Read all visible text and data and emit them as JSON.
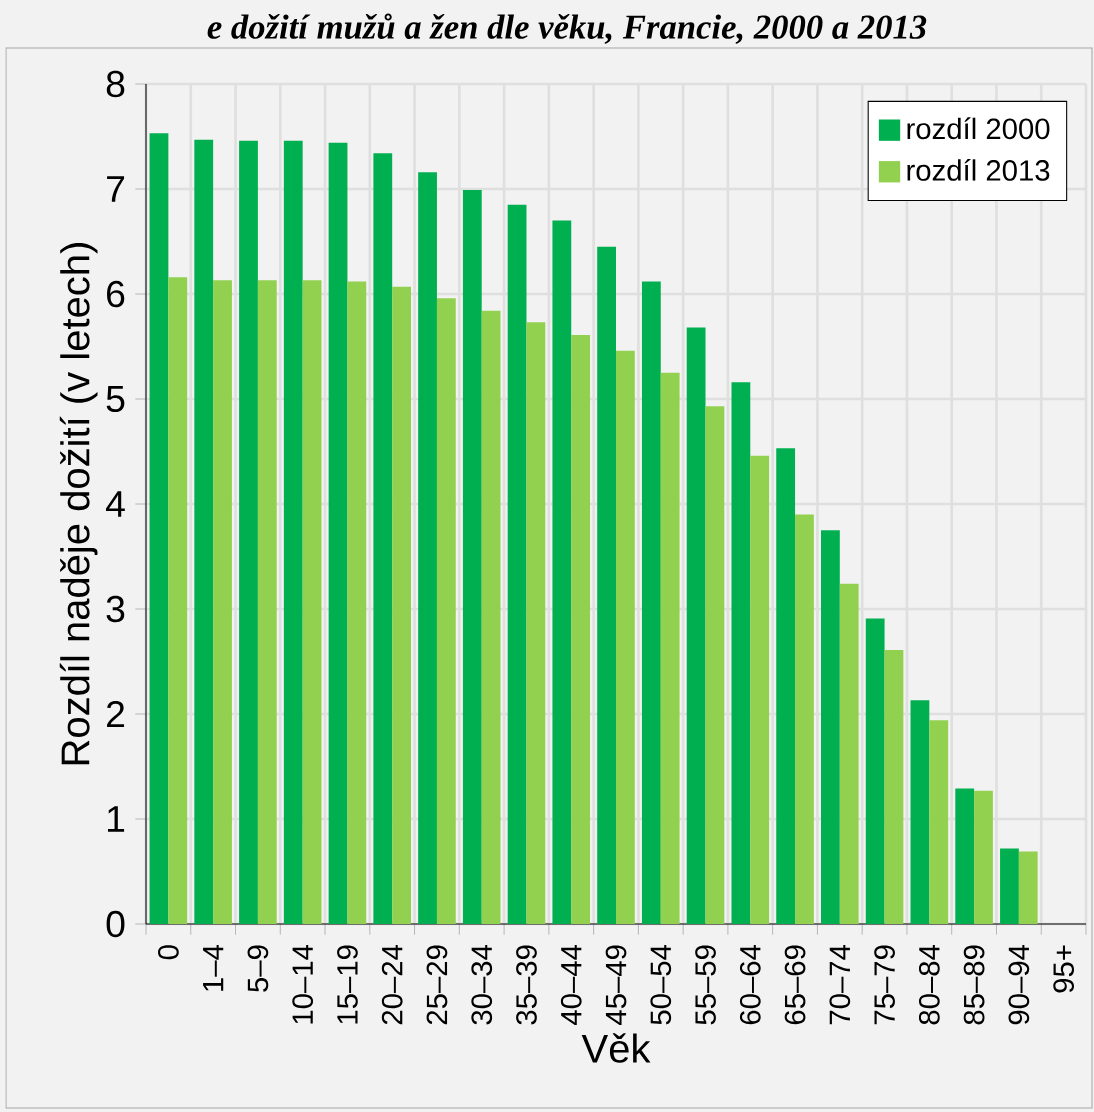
{
  "chart_data": {
    "type": "bar",
    "title": "e dožití mužů a žen dle věku, Francie, 2000 a 2013",
    "xlabel": "Věk",
    "ylabel": "Rozdíl naděje dožití (v letech)",
    "categories": [
      "0",
      "1–4",
      "5–9",
      "10–14",
      "15–19",
      "20–24",
      "25–29",
      "30–34",
      "35–39",
      "40–44",
      "45–49",
      "50–54",
      "55–59",
      "60–64",
      "65–69",
      "70–74",
      "75–79",
      "80–84",
      "85–89",
      "90–94",
      "95+"
    ],
    "series": [
      {
        "name": "rozdíl 2000",
        "color": "#00b050",
        "values": [
          7.53,
          7.47,
          7.46,
          7.46,
          7.44,
          7.34,
          7.16,
          6.99,
          6.85,
          6.7,
          6.45,
          6.12,
          5.68,
          5.16,
          4.53,
          3.75,
          2.91,
          2.13,
          1.29,
          0.72,
          null
        ]
      },
      {
        "name": "rozdíl 2013",
        "color": "#92d050",
        "values": [
          6.16,
          6.13,
          6.13,
          6.13,
          6.12,
          6.07,
          5.96,
          5.84,
          5.73,
          5.61,
          5.46,
          5.25,
          4.93,
          4.46,
          3.9,
          3.24,
          2.61,
          1.94,
          1.27,
          0.69,
          null
        ]
      }
    ],
    "ylim": [
      0,
      8
    ],
    "yticks": [
      0,
      1,
      2,
      3,
      4,
      5,
      6,
      7,
      8
    ],
    "grid": true,
    "legend": "top right"
  }
}
